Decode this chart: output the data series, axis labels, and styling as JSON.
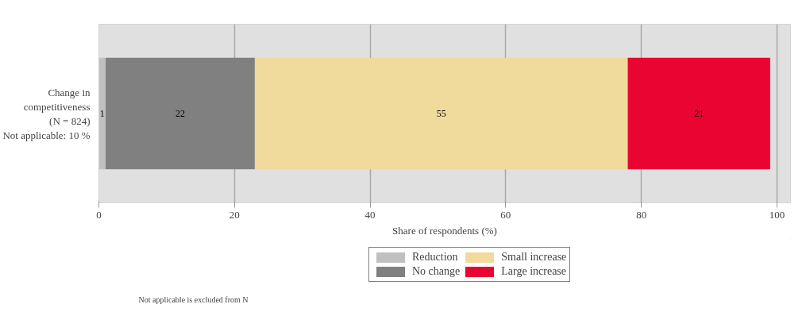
{
  "chart_data": {
    "type": "bar",
    "orientation": "horizontal",
    "stacked": true,
    "categories": [
      "Change in\ncompetitiveness\n(N = 824)\nNot applicable: 10 %"
    ],
    "series": [
      {
        "name": "Reduction",
        "color": "#c0c0c0",
        "values": [
          1
        ]
      },
      {
        "name": "No change",
        "color": "#808080",
        "values": [
          22
        ]
      },
      {
        "name": "Small increase",
        "color": "#f0da9c",
        "values": [
          55
        ]
      },
      {
        "name": "Large increase",
        "color": "#ea0432",
        "values": [
          21
        ]
      }
    ],
    "xlabel": "Share of respondents (%)",
    "xlim": [
      0,
      102
    ],
    "xticks": [
      0,
      20,
      40,
      60,
      80,
      100
    ],
    "grid": "x",
    "legend": "bottom",
    "data_labels": true,
    "annotations": [
      "Not applicable is excluded from N"
    ]
  }
}
